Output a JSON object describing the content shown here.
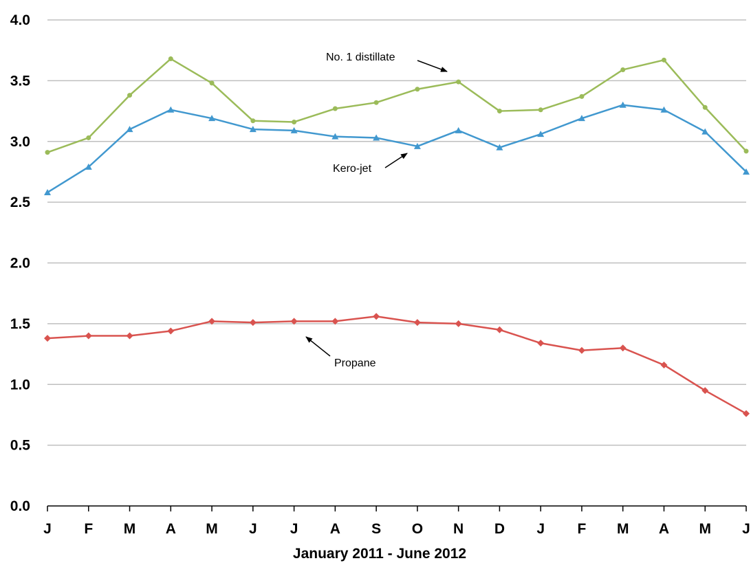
{
  "chart_data": {
    "type": "line",
    "title": "",
    "xlabel": "January 2011 - June 2012",
    "ylabel": "",
    "ylim": [
      0,
      4
    ],
    "yticks": [
      "0.0",
      "0.5",
      "1.0",
      "1.5",
      "2.0",
      "2.5",
      "3.0",
      "3.5",
      "4.0"
    ],
    "categories": [
      "J",
      "F",
      "M",
      "A",
      "M",
      "J",
      "J",
      "A",
      "S",
      "O",
      "N",
      "D",
      "J",
      "F",
      "M",
      "A",
      "M",
      "J"
    ],
    "grid": true,
    "series": [
      {
        "name": "No. 1 distillate",
        "color": "#9bbb59",
        "marker": "circle",
        "values": [
          2.91,
          3.03,
          3.38,
          3.68,
          3.48,
          3.17,
          3.16,
          3.27,
          3.32,
          3.43,
          3.49,
          3.25,
          3.26,
          3.37,
          3.59,
          3.67,
          3.28,
          2.92
        ]
      },
      {
        "name": "Kero-jet",
        "color": "#4198cf",
        "marker": "triangle",
        "values": [
          2.58,
          2.79,
          3.1,
          3.26,
          3.19,
          3.1,
          3.09,
          3.04,
          3.03,
          2.96,
          3.09,
          2.95,
          3.06,
          3.19,
          3.3,
          3.26,
          3.08,
          2.75
        ]
      },
      {
        "name": "Propane",
        "color": "#d9534f",
        "marker": "diamond",
        "values": [
          1.38,
          1.4,
          1.4,
          1.44,
          1.52,
          1.51,
          1.52,
          1.52,
          1.56,
          1.51,
          1.5,
          1.45,
          1.34,
          1.28,
          1.3,
          1.16,
          0.95,
          0.76
        ]
      }
    ],
    "annotations": [
      {
        "text": "No. 1 distillate",
        "series": "No. 1 distillate"
      },
      {
        "text": "Kero-jet",
        "series": "Kero-jet"
      },
      {
        "text": "Propane",
        "series": "Propane"
      }
    ]
  }
}
